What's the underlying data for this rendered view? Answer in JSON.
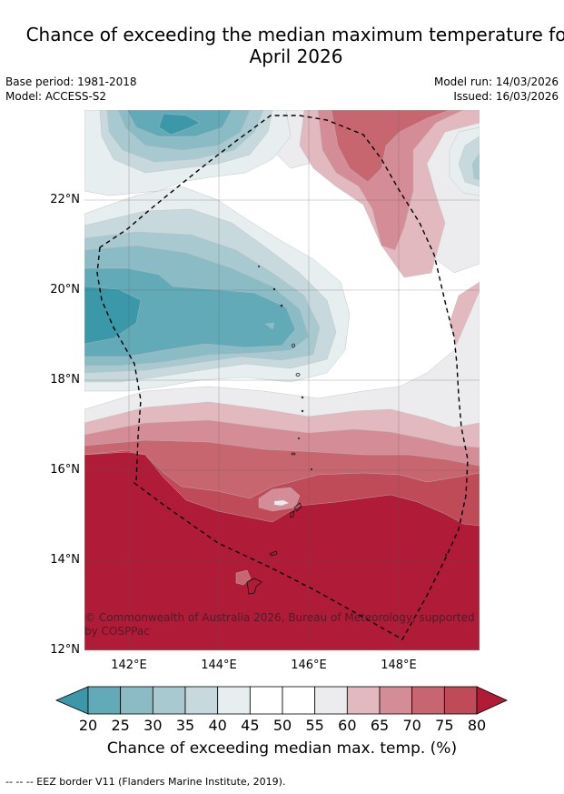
{
  "header": {
    "title_line1": "Chance of exceeding the median maximum temperature fo",
    "title_line2": "April 2026",
    "base_period": "Base period: 1981-2018",
    "model": "Model: ACCESS-S2",
    "model_run": "Model run: 14/03/2026",
    "issued": "Issued: 16/03/2026"
  },
  "map": {
    "lat_labels": [
      "22°N",
      "20°N",
      "18°N",
      "16°N",
      "14°N",
      "12°N"
    ],
    "lon_labels": [
      "142°E",
      "144°E",
      "146°E",
      "148°E"
    ],
    "copyright": "© Commonwealth of Australia 2026, Bureau of Meteorology, supported by COSPPac",
    "overlay": "EEZ border (dashed)"
  },
  "colorbar": {
    "ticks": [
      "20",
      "25",
      "30",
      "35",
      "40",
      "45",
      "50",
      "55",
      "60",
      "65",
      "70",
      "75",
      "80"
    ],
    "colors": [
      "#3a98a8",
      "#62aab8",
      "#8bbcc6",
      "#a8c9d0",
      "#c8d9de",
      "#e6eef0",
      "#ffffff",
      "#ffffff",
      "#ececee",
      "#e2b9bf",
      "#d48c96",
      "#c86670",
      "#bf4a58",
      "#b01c38"
    ],
    "label": "Chance of exceeding median max. temp. (%)"
  },
  "footnote": "-- -- -- EEZ border V11 (Flanders Marine Institute, 2019)."
}
